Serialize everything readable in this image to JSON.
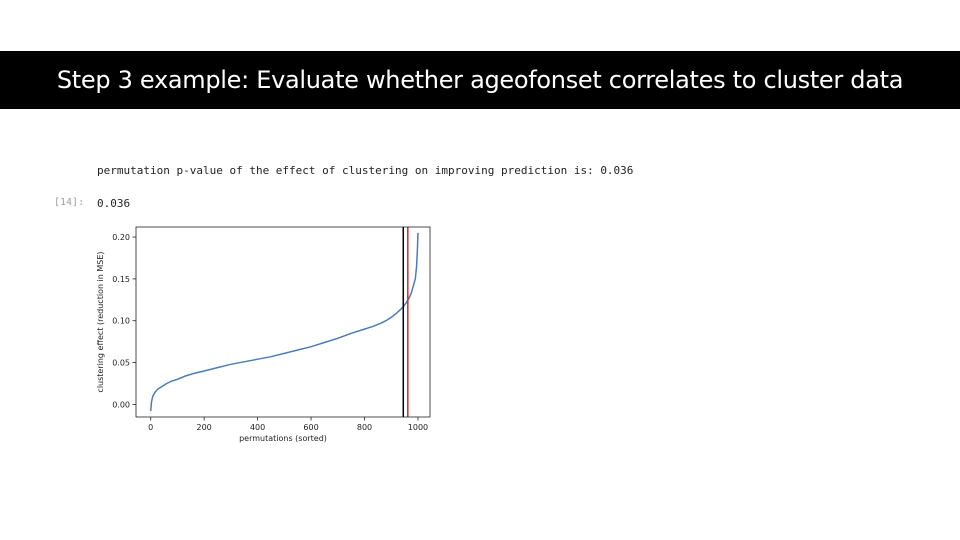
{
  "slide": {
    "title": "Step 3 example: Evaluate whether ageofonset correlates to cluster data"
  },
  "notebook": {
    "output_text": "permutation p-value of the effect of clustering on improving prediction is: 0.036",
    "cell_prompt": "[14]:",
    "cell_result": "0.036"
  },
  "chart_data": {
    "type": "line",
    "xlabel": "permutations (sorted)",
    "ylabel": "clustering effect (reduction in MSE)",
    "xlim": [
      -55,
      1045
    ],
    "ylim": [
      -0.015,
      0.212
    ],
    "xticks": [
      0,
      200,
      400,
      600,
      800,
      1000
    ],
    "yticks": [
      0.0,
      0.05,
      0.1,
      0.15,
      0.2
    ],
    "xtick_labels": [
      "0",
      "200",
      "400",
      "600",
      "800",
      "1000"
    ],
    "ytick_labels": [
      "0.00",
      "0.05",
      "0.10",
      "0.15",
      "0.20"
    ],
    "grid": false,
    "series": [
      {
        "color": "#4c7db4",
        "x": [
          0,
          3,
          8,
          15,
          25,
          40,
          60,
          80,
          100,
          130,
          160,
          200,
          250,
          300,
          350,
          400,
          450,
          500,
          550,
          600,
          650,
          700,
          750,
          800,
          830,
          860,
          880,
          900,
          920,
          940,
          955,
          965,
          975,
          983,
          990,
          995,
          998,
          1000
        ],
        "y": [
          -0.008,
          0.003,
          0.01,
          0.014,
          0.018,
          0.021,
          0.025,
          0.028,
          0.03,
          0.034,
          0.037,
          0.04,
          0.044,
          0.048,
          0.051,
          0.054,
          0.057,
          0.061,
          0.065,
          0.069,
          0.074,
          0.079,
          0.085,
          0.09,
          0.093,
          0.097,
          0.1,
          0.104,
          0.109,
          0.115,
          0.121,
          0.126,
          0.133,
          0.142,
          0.15,
          0.165,
          0.185,
          0.205
        ]
      }
    ],
    "vlines": [
      {
        "x": 945,
        "color": "#000000"
      },
      {
        "x": 962,
        "color": "#d62728"
      }
    ]
  }
}
